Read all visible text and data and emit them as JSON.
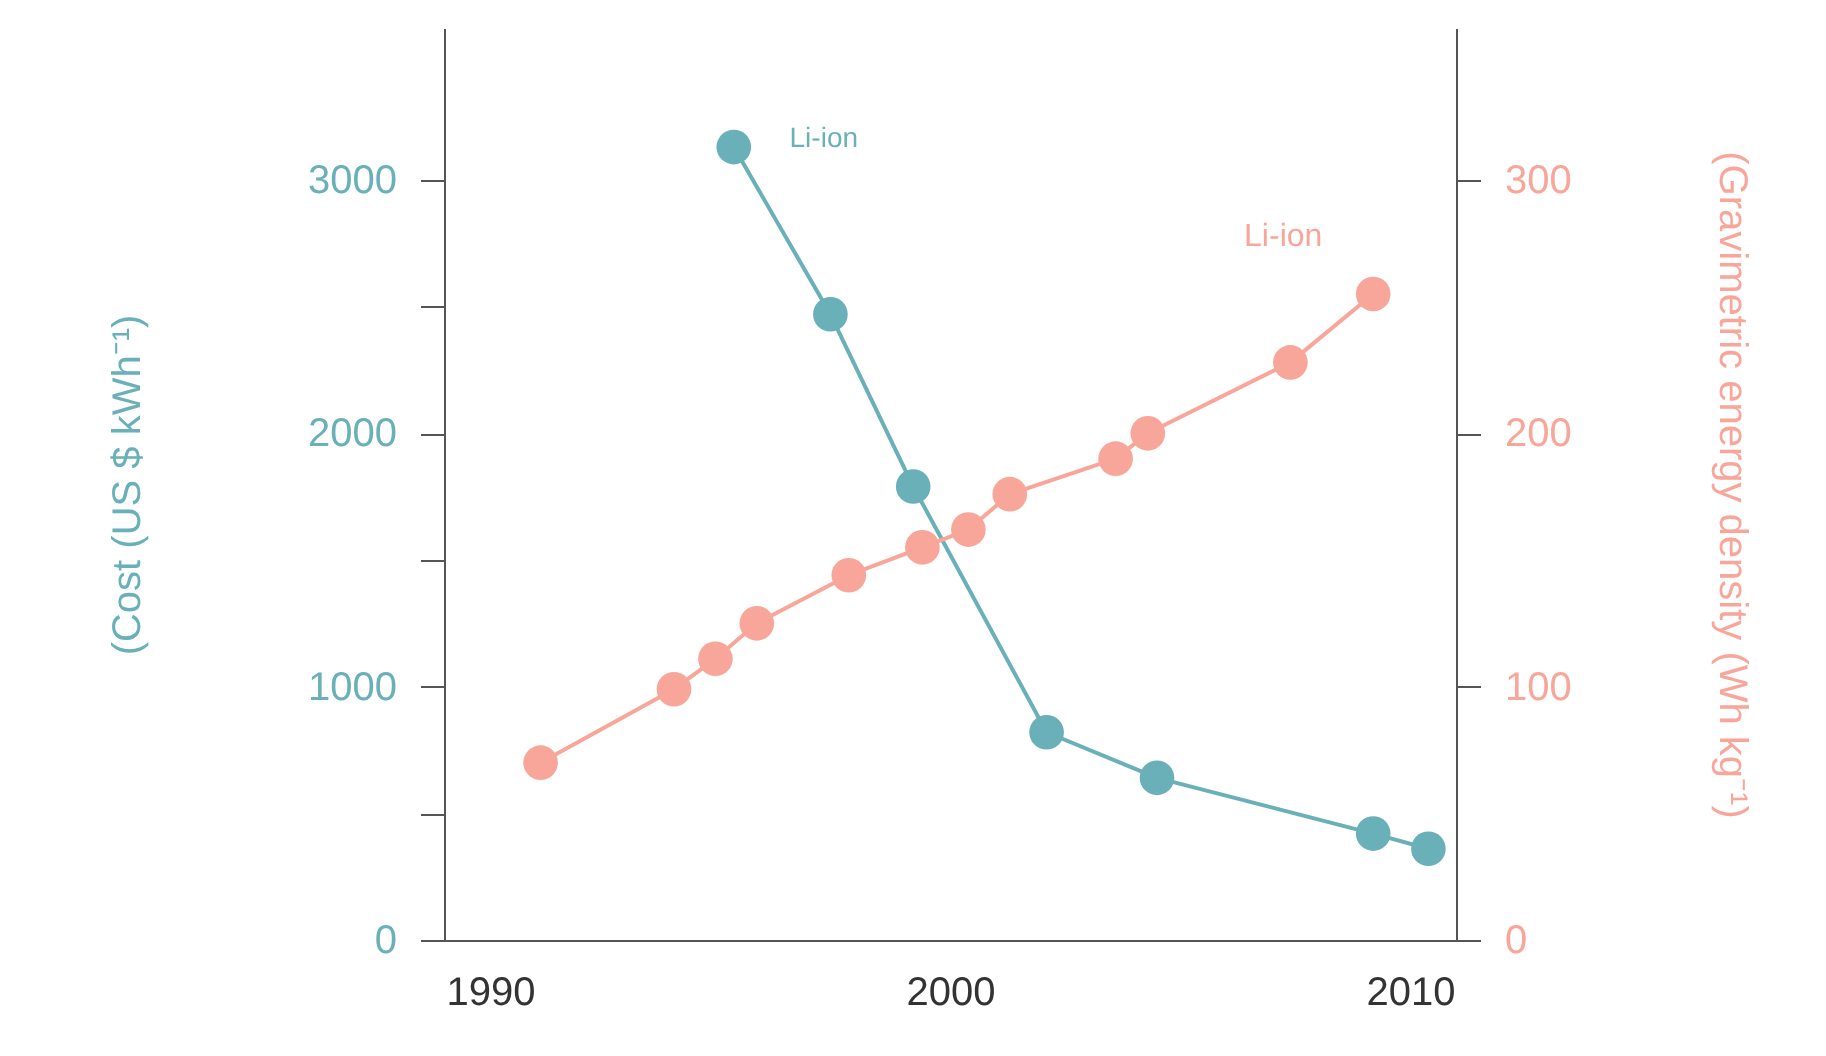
{
  "chart_data": {
    "type": "line",
    "xlabel": null,
    "ylabel": "(Cost (US $ kWh⁻¹)",
    "y2label": "(Gravimetric energy density (Wh kg⁻¹)",
    "xlim": [
      1989,
      2011
    ],
    "xticks": [
      1990,
      2000,
      2010
    ],
    "ylim": [
      0,
      3600
    ],
    "yticks": [
      0,
      {
        "value": 500,
        "label": null
      },
      1000,
      {
        "value": 1500,
        "label": null
      },
      2000,
      {
        "value": 2500,
        "label": null
      },
      3000
    ],
    "y2lim": [
      0,
      360
    ],
    "y2ticks": [
      0,
      100,
      200,
      300
    ],
    "grid": false,
    "marker": "circle",
    "series": [
      {
        "name": "Li-ion",
        "color": "#69b0b9",
        "x": [
          1995.3,
          1997.4,
          1999.2,
          2002.1,
          2004.5,
          2009.2,
          2010.4
        ],
        "values": [
          3130,
          2470,
          1790,
          820,
          640,
          420,
          360
        ]
      },
      {
        "name": "Li-ion",
        "color": "#f9a69a",
        "axis": "y2",
        "x": [
          1991.1,
          1994.0,
          1994.9,
          1995.8,
          1997.8,
          1999.4,
          2000.4,
          2001.3,
          2003.6,
          2004.3,
          2007.4,
          2009.2
        ],
        "values": [
          70,
          99,
          111,
          125,
          144,
          155,
          162,
          176,
          190,
          200,
          228,
          255
        ]
      }
    ]
  }
}
